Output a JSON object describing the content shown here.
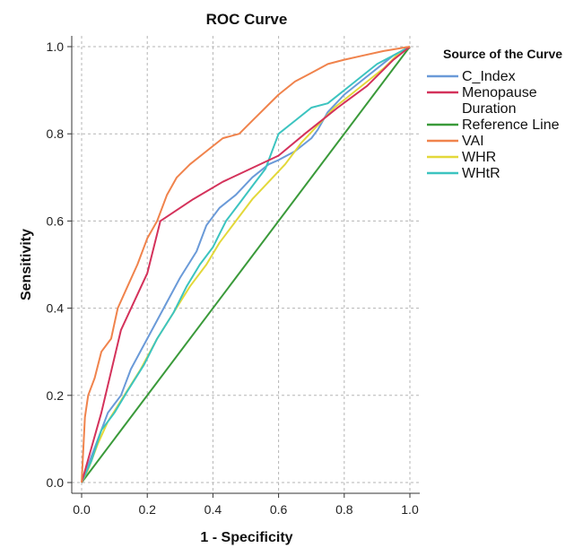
{
  "chart_data": {
    "type": "line",
    "title": "ROC Curve",
    "xlabel": "1 - Specificity",
    "ylabel": "Sensitivity",
    "xlim": [
      0,
      1
    ],
    "ylim": [
      0,
      1
    ],
    "x_ticks": [
      "0.0",
      "0.2",
      "0.4",
      "0.6",
      "0.8",
      "1.0"
    ],
    "y_ticks": [
      "0.0",
      "0.2",
      "0.4",
      "0.6",
      "0.8",
      "1.0"
    ],
    "grid": true,
    "legend_title": "Source of the Curve",
    "legend_position": "right",
    "series": [
      {
        "name": "C_Index",
        "color": "#6a9ad8",
        "points": [
          [
            0,
            0
          ],
          [
            0.02,
            0.04
          ],
          [
            0.05,
            0.1
          ],
          [
            0.08,
            0.16
          ],
          [
            0.12,
            0.2
          ],
          [
            0.15,
            0.26
          ],
          [
            0.2,
            0.33
          ],
          [
            0.25,
            0.4
          ],
          [
            0.3,
            0.47
          ],
          [
            0.35,
            0.53
          ],
          [
            0.38,
            0.59
          ],
          [
            0.42,
            0.63
          ],
          [
            0.47,
            0.66
          ],
          [
            0.52,
            0.7
          ],
          [
            0.57,
            0.73
          ],
          [
            0.6,
            0.74
          ],
          [
            0.65,
            0.76
          ],
          [
            0.7,
            0.79
          ],
          [
            0.72,
            0.81
          ],
          [
            0.75,
            0.85
          ],
          [
            0.8,
            0.89
          ],
          [
            0.85,
            0.92
          ],
          [
            0.9,
            0.95
          ],
          [
            0.95,
            0.98
          ],
          [
            1,
            1
          ]
        ]
      },
      {
        "name": "Menopause\nDuration",
        "color": "#d4325b",
        "points": [
          [
            0,
            0
          ],
          [
            0.06,
            0.16
          ],
          [
            0.12,
            0.35
          ],
          [
            0.2,
            0.48
          ],
          [
            0.24,
            0.6
          ],
          [
            0.34,
            0.65
          ],
          [
            0.43,
            0.69
          ],
          [
            0.6,
            0.75
          ],
          [
            0.68,
            0.8
          ],
          [
            0.78,
            0.86
          ],
          [
            0.87,
            0.91
          ],
          [
            0.95,
            0.97
          ],
          [
            1,
            1
          ]
        ]
      },
      {
        "name": "Reference Line",
        "color": "#3a9a3a",
        "points": [
          [
            0,
            0
          ],
          [
            1,
            1
          ]
        ]
      },
      {
        "name": "VAI",
        "color": "#f0834c",
        "points": [
          [
            0,
            0
          ],
          [
            0.01,
            0.15
          ],
          [
            0.02,
            0.2
          ],
          [
            0.04,
            0.24
          ],
          [
            0.06,
            0.3
          ],
          [
            0.09,
            0.33
          ],
          [
            0.11,
            0.4
          ],
          [
            0.14,
            0.45
          ],
          [
            0.17,
            0.5
          ],
          [
            0.2,
            0.56
          ],
          [
            0.23,
            0.6
          ],
          [
            0.26,
            0.66
          ],
          [
            0.29,
            0.7
          ],
          [
            0.33,
            0.73
          ],
          [
            0.38,
            0.76
          ],
          [
            0.43,
            0.79
          ],
          [
            0.48,
            0.8
          ],
          [
            0.52,
            0.83
          ],
          [
            0.56,
            0.86
          ],
          [
            0.6,
            0.89
          ],
          [
            0.65,
            0.92
          ],
          [
            0.7,
            0.94
          ],
          [
            0.75,
            0.96
          ],
          [
            0.8,
            0.97
          ],
          [
            0.86,
            0.98
          ],
          [
            0.92,
            0.99
          ],
          [
            1,
            1
          ]
        ]
      },
      {
        "name": "WHR",
        "color": "#e3d83a",
        "points": [
          [
            0,
            0
          ],
          [
            0.02,
            0.03
          ],
          [
            0.05,
            0.09
          ],
          [
            0.08,
            0.14
          ],
          [
            0.13,
            0.2
          ],
          [
            0.18,
            0.26
          ],
          [
            0.23,
            0.33
          ],
          [
            0.28,
            0.39
          ],
          [
            0.33,
            0.45
          ],
          [
            0.38,
            0.5
          ],
          [
            0.42,
            0.55
          ],
          [
            0.47,
            0.6
          ],
          [
            0.52,
            0.65
          ],
          [
            0.57,
            0.69
          ],
          [
            0.62,
            0.73
          ],
          [
            0.67,
            0.78
          ],
          [
            0.72,
            0.82
          ],
          [
            0.77,
            0.86
          ],
          [
            0.82,
            0.89
          ],
          [
            0.87,
            0.92
          ],
          [
            0.92,
            0.95
          ],
          [
            0.96,
            0.98
          ],
          [
            1,
            1
          ]
        ]
      },
      {
        "name": "WHtR",
        "color": "#3cc4c0",
        "points": [
          [
            0,
            0
          ],
          [
            0.03,
            0.05
          ],
          [
            0.06,
            0.12
          ],
          [
            0.1,
            0.16
          ],
          [
            0.14,
            0.21
          ],
          [
            0.19,
            0.27
          ],
          [
            0.23,
            0.33
          ],
          [
            0.28,
            0.39
          ],
          [
            0.32,
            0.45
          ],
          [
            0.36,
            0.5
          ],
          [
            0.4,
            0.54
          ],
          [
            0.44,
            0.6
          ],
          [
            0.48,
            0.64
          ],
          [
            0.52,
            0.68
          ],
          [
            0.56,
            0.72
          ],
          [
            0.6,
            0.8
          ],
          [
            0.65,
            0.83
          ],
          [
            0.7,
            0.86
          ],
          [
            0.75,
            0.87
          ],
          [
            0.8,
            0.9
          ],
          [
            0.85,
            0.93
          ],
          [
            0.9,
            0.96
          ],
          [
            0.95,
            0.98
          ],
          [
            1,
            1
          ]
        ]
      }
    ]
  }
}
